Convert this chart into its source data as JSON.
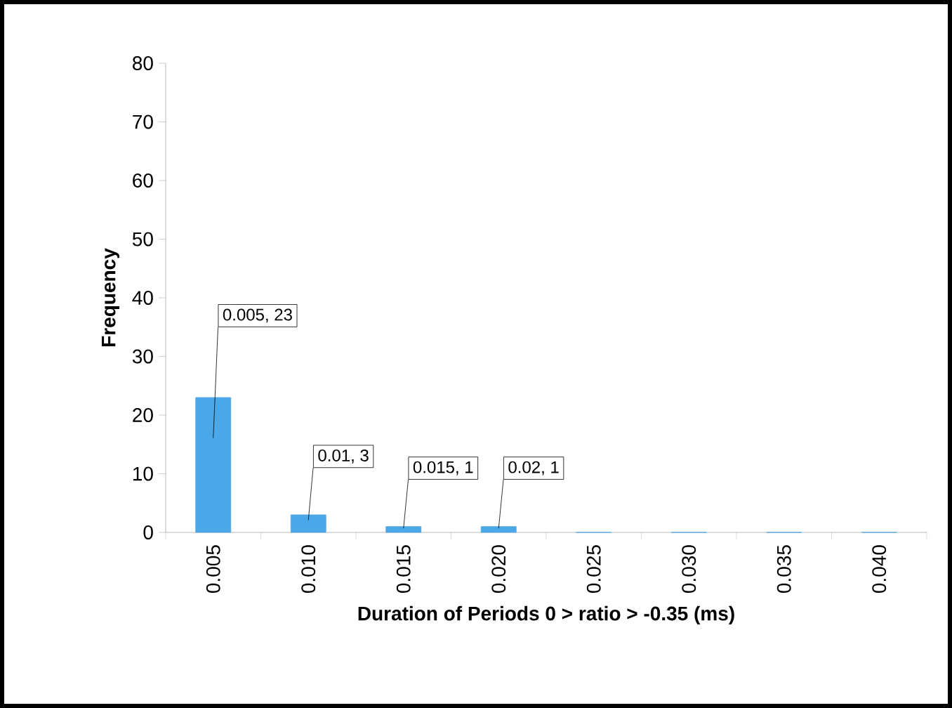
{
  "chart_data": {
    "type": "bar",
    "xlabel": "Duration of Periods 0 > ratio > -0.35 (ms)",
    "ylabel": "Frequency",
    "categories": [
      "0.005",
      "0.010",
      "0.015",
      "0.020",
      "0.025",
      "0.030",
      "0.035",
      "0.040"
    ],
    "values": [
      23,
      3,
      1,
      1,
      0,
      0,
      0,
      0
    ],
    "value_labels": [
      "0.005, 23",
      "0.01, 3",
      "0.015, 1",
      "0.02, 1",
      null,
      null,
      null,
      null
    ],
    "color": "#4aa8e8",
    "ylim": [
      0,
      80
    ],
    "yticks": [
      0,
      10,
      20,
      30,
      40,
      50,
      60,
      70,
      80
    ],
    "grid": false
  }
}
